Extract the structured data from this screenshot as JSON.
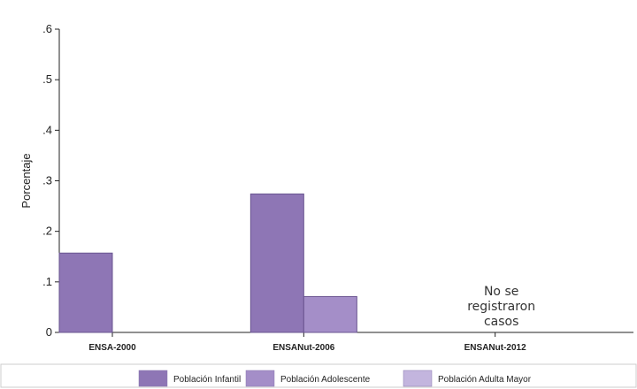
{
  "chart_data": {
    "type": "bar",
    "categories": [
      "ENSA-2000",
      "ENSANut-2006",
      "ENSANut-2012"
    ],
    "series": [
      {
        "name": "Población Infantil",
        "values": [
          0.157,
          0.274,
          null
        ],
        "color": "#8e76b5"
      },
      {
        "name": "Población Adolescente",
        "values": [
          null,
          0.071,
          null
        ],
        "color": "#a48ec8"
      },
      {
        "name": "Población Adulta Mayor",
        "values": [
          null,
          null,
          null
        ],
        "color": "#c3b5de"
      }
    ],
    "ylabel": "Porcentaje",
    "ylim": [
      0,
      0.6
    ],
    "yticks": [
      0,
      0.1,
      0.2,
      0.3,
      0.4,
      0.5,
      0.6
    ],
    "ytick_labels": [
      "0",
      ".1",
      ".2",
      ".3",
      ".4",
      ".5",
      ".6"
    ],
    "annotation": {
      "category": "ENSANut-2012",
      "lines": [
        "No se",
        "registraron",
        "casos"
      ]
    },
    "legend_position": "bottom",
    "grid": false
  }
}
